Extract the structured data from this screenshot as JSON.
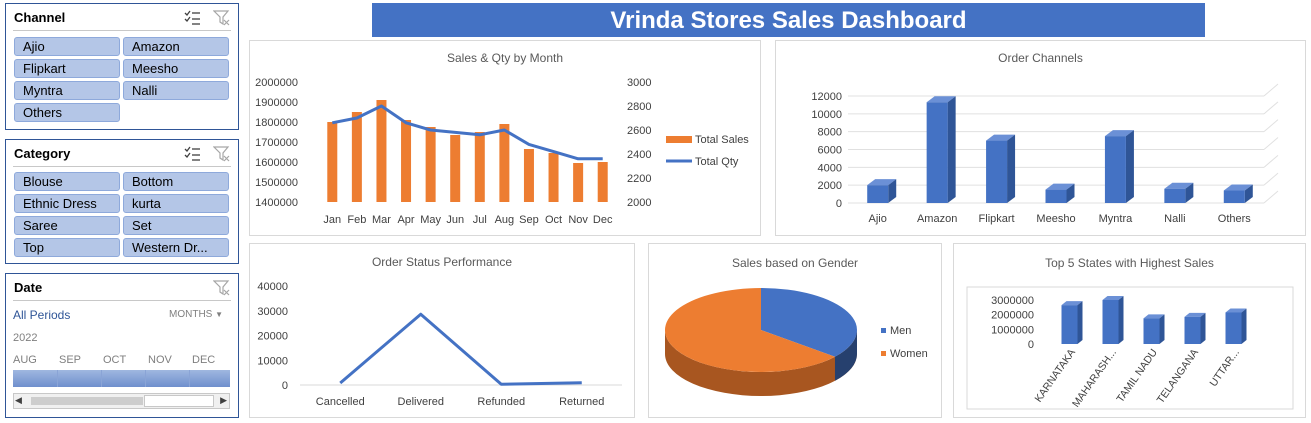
{
  "dashboard_title": "Vrinda Stores Sales Dashboard",
  "colors": {
    "orange": "#ed7d31",
    "blue": "#4472c4",
    "dark_blue": "#2f5597",
    "slicer_fill": "#b4c6e7"
  },
  "channel_slicer": {
    "title": "Channel",
    "items": [
      "Ajio",
      "Amazon",
      "Flipkart",
      "Meesho",
      "Myntra",
      "Nalli",
      "Others"
    ]
  },
  "category_slicer": {
    "title": "Category",
    "items": [
      "Blouse",
      "Bottom",
      "Ethnic Dress",
      "kurta",
      "Saree",
      "Set",
      "Top",
      "Western Dr..."
    ]
  },
  "date_slicer": {
    "title": "Date",
    "period": "All Periods",
    "level": "MONTHS",
    "year": "2022",
    "months": [
      "AUG",
      "SEP",
      "OCT",
      "NOV",
      "DEC"
    ]
  },
  "chart_data": [
    {
      "type": "bar",
      "title": "Sales & Qty by Month",
      "categories": [
        "Jan",
        "Feb",
        "Mar",
        "Apr",
        "May",
        "Jun",
        "Jul",
        "Aug",
        "Sep",
        "Oct",
        "Nov",
        "Dec"
      ],
      "series": [
        {
          "name": "Total Sales",
          "type": "bar",
          "axis": "left",
          "values": [
            1800000,
            1850000,
            1910000,
            1810000,
            1775000,
            1735000,
            1750000,
            1790000,
            1665000,
            1645000,
            1595000,
            1600000
          ]
        },
        {
          "name": "Total Qty",
          "type": "line",
          "axis": "right",
          "values": [
            2660,
            2700,
            2800,
            2660,
            2600,
            2580,
            2560,
            2600,
            2480,
            2420,
            2360,
            2360
          ]
        }
      ],
      "ylim": [
        1400000,
        2000000
      ],
      "yticks": [
        "2000000",
        "1900000",
        "1800000",
        "1700000",
        "1600000",
        "1500000",
        "1400000"
      ],
      "y2lim": [
        2000,
        3000
      ],
      "y2ticks": [
        "3000",
        "2800",
        "2600",
        "2400",
        "2200",
        "2000"
      ],
      "legend": "right"
    },
    {
      "type": "bar",
      "title": "Order Channels",
      "categories": [
        "Ajio",
        "Amazon",
        "Flipkart",
        "Meesho",
        "Myntra",
        "Nalli",
        "Others"
      ],
      "values": [
        2000,
        11300,
        7000,
        1500,
        7500,
        1600,
        1400
      ],
      "ylim": [
        0,
        12000
      ],
      "yticks": [
        "12000",
        "10000",
        "8000",
        "6000",
        "4000",
        "2000",
        "0"
      ],
      "style": "3d"
    },
    {
      "type": "line",
      "title": "Order Status Performance",
      "categories": [
        "Cancelled",
        "Delivered",
        "Refunded",
        "Returned"
      ],
      "values": [
        800,
        28600,
        300,
        900
      ],
      "ylim": [
        0,
        40000
      ],
      "yticks": [
        "40000",
        "30000",
        "20000",
        "10000",
        "0"
      ]
    },
    {
      "type": "pie",
      "title": "Sales based on Gender",
      "labels": [
        "Men",
        "Women"
      ],
      "values": [
        36,
        64
      ],
      "legend": "right",
      "style": "3d"
    },
    {
      "type": "bar",
      "title": "Top 5 States with Highest Sales",
      "categories": [
        "KARNATAKA",
        "MAHARASH...",
        "TAMIL NADU",
        "TELANGANA",
        "UTTAR..."
      ],
      "values": [
        2650000,
        3000000,
        1750000,
        1850000,
        2150000
      ],
      "ylim": [
        0,
        3000000
      ],
      "yticks": [
        "3000000",
        "2000000",
        "1000000",
        "0"
      ],
      "style": "3d"
    }
  ]
}
